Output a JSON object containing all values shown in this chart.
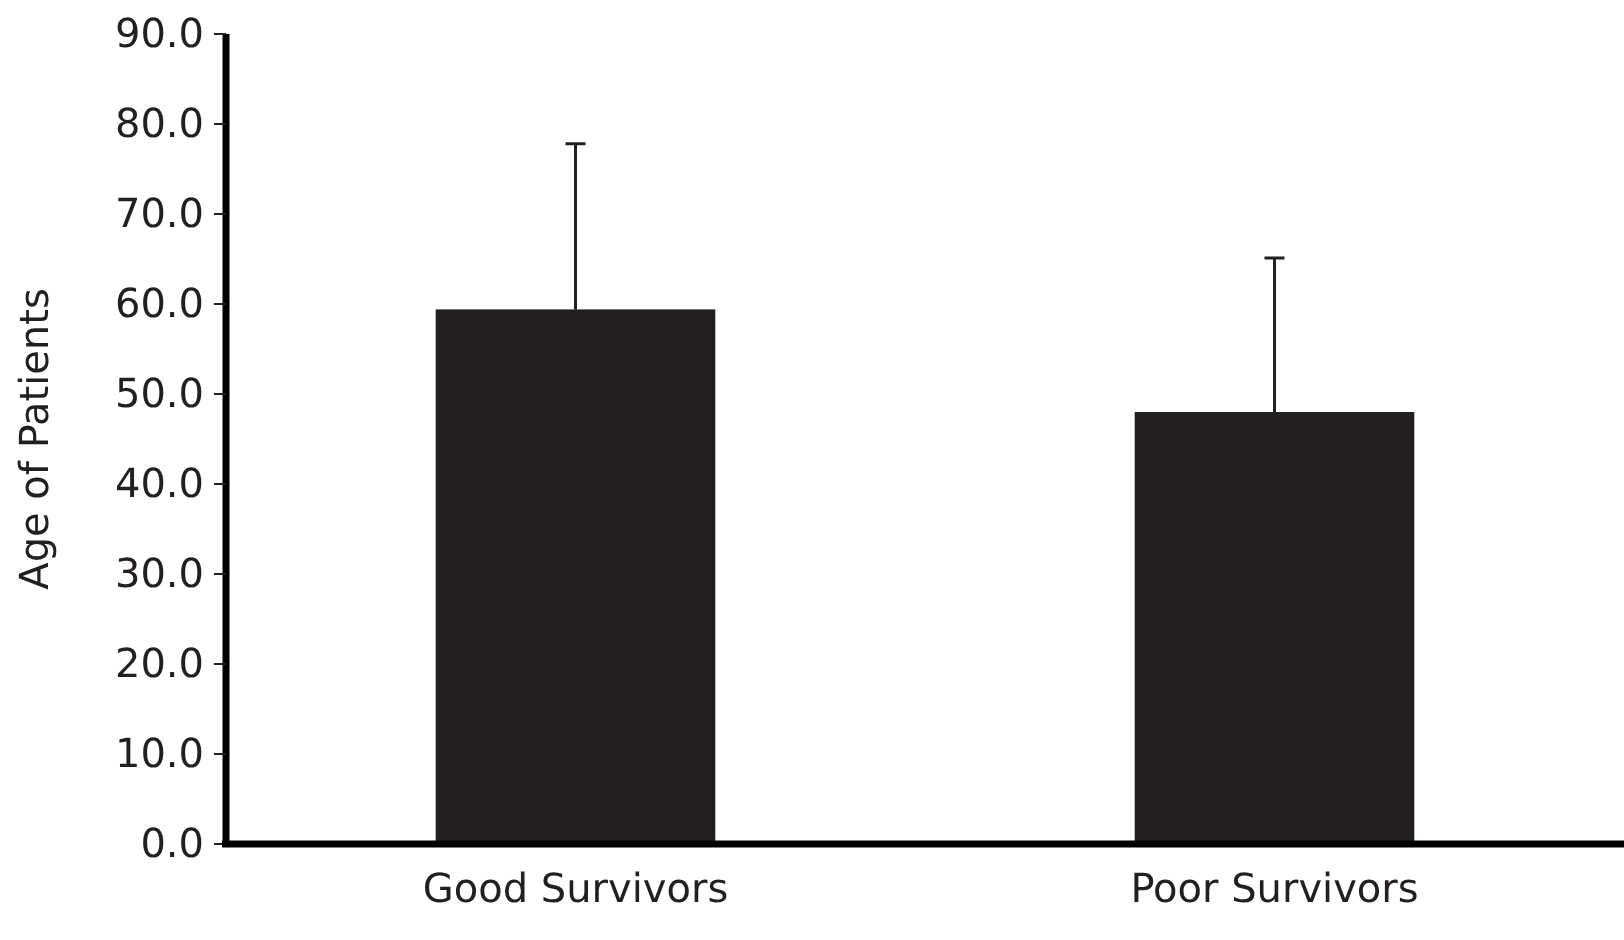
{
  "chart_data": {
    "type": "bar",
    "ylabel": "Age of Patients",
    "categories": [
      "Good Survivors",
      "Poor Survivors"
    ],
    "values": [
      59.4,
      48.0
    ],
    "errors": [
      [
        59.4,
        77.8
      ],
      [
        48.0,
        65.1
      ]
    ],
    "color": "#231f20",
    "ylim": [
      0,
      90
    ],
    "yticks": [
      {
        "value": 0,
        "label": "0.0"
      },
      {
        "value": 10,
        "label": "10.0"
      },
      {
        "value": 20,
        "label": "20.0"
      },
      {
        "value": 30,
        "label": "30.0"
      },
      {
        "value": 40,
        "label": "40.0"
      },
      {
        "value": 50,
        "label": "50.0"
      },
      {
        "value": 60,
        "label": "60.0"
      },
      {
        "value": 70,
        "label": "70.0"
      },
      {
        "value": 80,
        "label": "80.0"
      },
      {
        "value": 90,
        "label": "90.0"
      }
    ],
    "grid": false
  }
}
